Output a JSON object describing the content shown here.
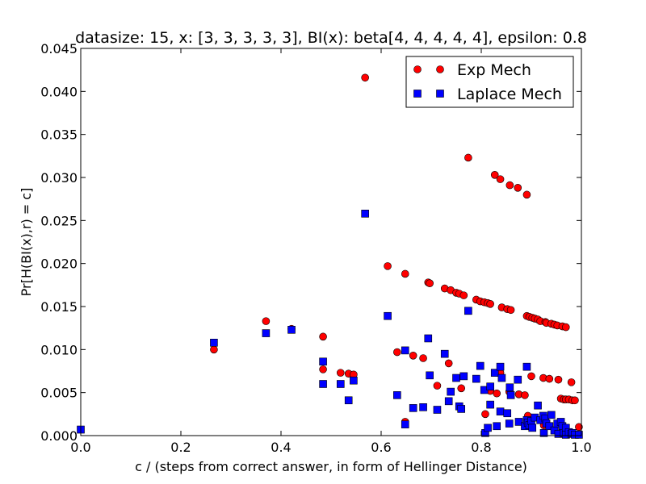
{
  "chart_data": {
    "type": "scatter",
    "title": "datasize: 15, x: [3, 3, 3, 3, 3], BI(x): beta[4, 4, 4, 4, 4], epsilon: 0.8",
    "xlabel": "c / (steps from correct answer, in form of Hellinger Distance)",
    "ylabel": "Pr[H(BI(x),r) = c]",
    "xlim": [
      0.0,
      1.0
    ],
    "ylim": [
      0.0,
      0.045
    ],
    "xticks": [
      "0.0",
      "0.2",
      "0.4",
      "0.6",
      "0.8",
      "1.0"
    ],
    "yticks": [
      "0.000",
      "0.005",
      "0.010",
      "0.015",
      "0.020",
      "0.025",
      "0.030",
      "0.035",
      "0.040",
      "0.045"
    ],
    "legend_position": "top-right",
    "series": [
      {
        "name": "Exp Mech",
        "color": "#ff0000",
        "marker": "circle",
        "points": [
          [
            0.266,
            0.01
          ],
          [
            0.37,
            0.0133
          ],
          [
            0.421,
            0.0124
          ],
          [
            0.484,
            0.0115
          ],
          [
            0.484,
            0.0077
          ],
          [
            0.519,
            0.0073
          ],
          [
            0.535,
            0.0072
          ],
          [
            0.545,
            0.0071
          ],
          [
            0.568,
            0.0416
          ],
          [
            0.613,
            0.0197
          ],
          [
            0.632,
            0.0097
          ],
          [
            0.648,
            0.0188
          ],
          [
            0.648,
            0.0016
          ],
          [
            0.664,
            0.0093
          ],
          [
            0.684,
            0.009
          ],
          [
            0.694,
            0.0178
          ],
          [
            0.697,
            0.0177
          ],
          [
            0.712,
            0.0058
          ],
          [
            0.727,
            0.0171
          ],
          [
            0.735,
            0.0084
          ],
          [
            0.739,
            0.0169
          ],
          [
            0.75,
            0.0166
          ],
          [
            0.756,
            0.0165
          ],
          [
            0.76,
            0.0055
          ],
          [
            0.765,
            0.0163
          ],
          [
            0.774,
            0.0323
          ],
          [
            0.79,
            0.0158
          ],
          [
            0.798,
            0.0156
          ],
          [
            0.806,
            0.0155
          ],
          [
            0.808,
            0.0025
          ],
          [
            0.813,
            0.0154
          ],
          [
            0.818,
            0.0153
          ],
          [
            0.818,
            0.0052
          ],
          [
            0.827,
            0.0303
          ],
          [
            0.831,
            0.0049
          ],
          [
            0.838,
            0.0298
          ],
          [
            0.838,
            0.0073
          ],
          [
            0.841,
            0.0149
          ],
          [
            0.852,
            0.0147
          ],
          [
            0.856,
            0.0051
          ],
          [
            0.857,
            0.0291
          ],
          [
            0.859,
            0.0146
          ],
          [
            0.873,
            0.0288
          ],
          [
            0.875,
            0.0048
          ],
          [
            0.887,
            0.0047
          ],
          [
            0.891,
            0.028
          ],
          [
            0.891,
            0.0139
          ],
          [
            0.893,
            0.0023
          ],
          [
            0.896,
            0.0138
          ],
          [
            0.9,
            0.0069
          ],
          [
            0.902,
            0.0137
          ],
          [
            0.907,
            0.0136
          ],
          [
            0.913,
            0.0135
          ],
          [
            0.918,
            0.0133
          ],
          [
            0.924,
            0.0067
          ],
          [
            0.925,
            0.0012
          ],
          [
            0.928,
            0.0132
          ],
          [
            0.93,
            0.0131
          ],
          [
            0.936,
            0.0066
          ],
          [
            0.94,
            0.013
          ],
          [
            0.946,
            0.0129
          ],
          [
            0.952,
            0.0128
          ],
          [
            0.954,
            0.0065
          ],
          [
            0.959,
            0.0043
          ],
          [
            0.962,
            0.0127
          ],
          [
            0.965,
            0.0042
          ],
          [
            0.969,
            0.0126
          ],
          [
            0.969,
            0.0042
          ],
          [
            0.975,
            0.0042
          ],
          [
            0.98,
            0.0062
          ],
          [
            0.982,
            0.0041
          ],
          [
            0.987,
            0.0041
          ],
          [
            0.995,
            0.001
          ]
        ]
      },
      {
        "name": "Laplace Mech",
        "color": "#0000ff",
        "marker": "square",
        "points": [
          [
            0.0,
            0.0007
          ],
          [
            0.266,
            0.0108
          ],
          [
            0.37,
            0.0119
          ],
          [
            0.421,
            0.0123
          ],
          [
            0.484,
            0.0086
          ],
          [
            0.484,
            0.006
          ],
          [
            0.519,
            0.006
          ],
          [
            0.535,
            0.0041
          ],
          [
            0.545,
            0.0064
          ],
          [
            0.568,
            0.0258
          ],
          [
            0.613,
            0.0139
          ],
          [
            0.632,
            0.0047
          ],
          [
            0.648,
            0.0099
          ],
          [
            0.648,
            0.0013
          ],
          [
            0.664,
            0.0032
          ],
          [
            0.684,
            0.0033
          ],
          [
            0.694,
            0.0113
          ],
          [
            0.697,
            0.007
          ],
          [
            0.712,
            0.003
          ],
          [
            0.727,
            0.0095
          ],
          [
            0.735,
            0.004
          ],
          [
            0.739,
            0.0051
          ],
          [
            0.75,
            0.0067
          ],
          [
            0.756,
            0.0034
          ],
          [
            0.76,
            0.0031
          ],
          [
            0.765,
            0.0069
          ],
          [
            0.774,
            0.0145
          ],
          [
            0.79,
            0.0066
          ],
          [
            0.798,
            0.0081
          ],
          [
            0.806,
            0.0053
          ],
          [
            0.808,
            0.0003
          ],
          [
            0.813,
            0.0009
          ],
          [
            0.818,
            0.0036
          ],
          [
            0.818,
            0.0057
          ],
          [
            0.827,
            0.0073
          ],
          [
            0.831,
            0.0011
          ],
          [
            0.838,
            0.008
          ],
          [
            0.838,
            0.0028
          ],
          [
            0.841,
            0.0067
          ],
          [
            0.852,
            0.0026
          ],
          [
            0.856,
            0.0014
          ],
          [
            0.857,
            0.0056
          ],
          [
            0.859,
            0.0047
          ],
          [
            0.873,
            0.0065
          ],
          [
            0.875,
            0.0016
          ],
          [
            0.887,
            0.0011
          ],
          [
            0.891,
            0.008
          ],
          [
            0.891,
            0.0018
          ],
          [
            0.893,
            0.0015
          ],
          [
            0.896,
            0.0012
          ],
          [
            0.9,
            0.0017
          ],
          [
            0.902,
            0.0009
          ],
          [
            0.907,
            0.0021
          ],
          [
            0.913,
            0.0035
          ],
          [
            0.918,
            0.0018
          ],
          [
            0.924,
            0.0023
          ],
          [
            0.925,
            0.0003
          ],
          [
            0.928,
            0.002
          ],
          [
            0.93,
            0.0014
          ],
          [
            0.936,
            0.0011
          ],
          [
            0.94,
            0.0024
          ],
          [
            0.946,
            0.0006
          ],
          [
            0.952,
            0.0014
          ],
          [
            0.954,
            0.0002
          ],
          [
            0.959,
            0.0016
          ],
          [
            0.962,
            0.0011
          ],
          [
            0.965,
            0.0003
          ],
          [
            0.969,
            0.0009
          ],
          [
            0.969,
            0.0001
          ],
          [
            0.975,
            0.0004
          ],
          [
            0.98,
            0.0002
          ],
          [
            0.982,
            0.0003
          ],
          [
            0.987,
            0.0001
          ],
          [
            0.995,
            0.0001
          ]
        ]
      }
    ]
  }
}
